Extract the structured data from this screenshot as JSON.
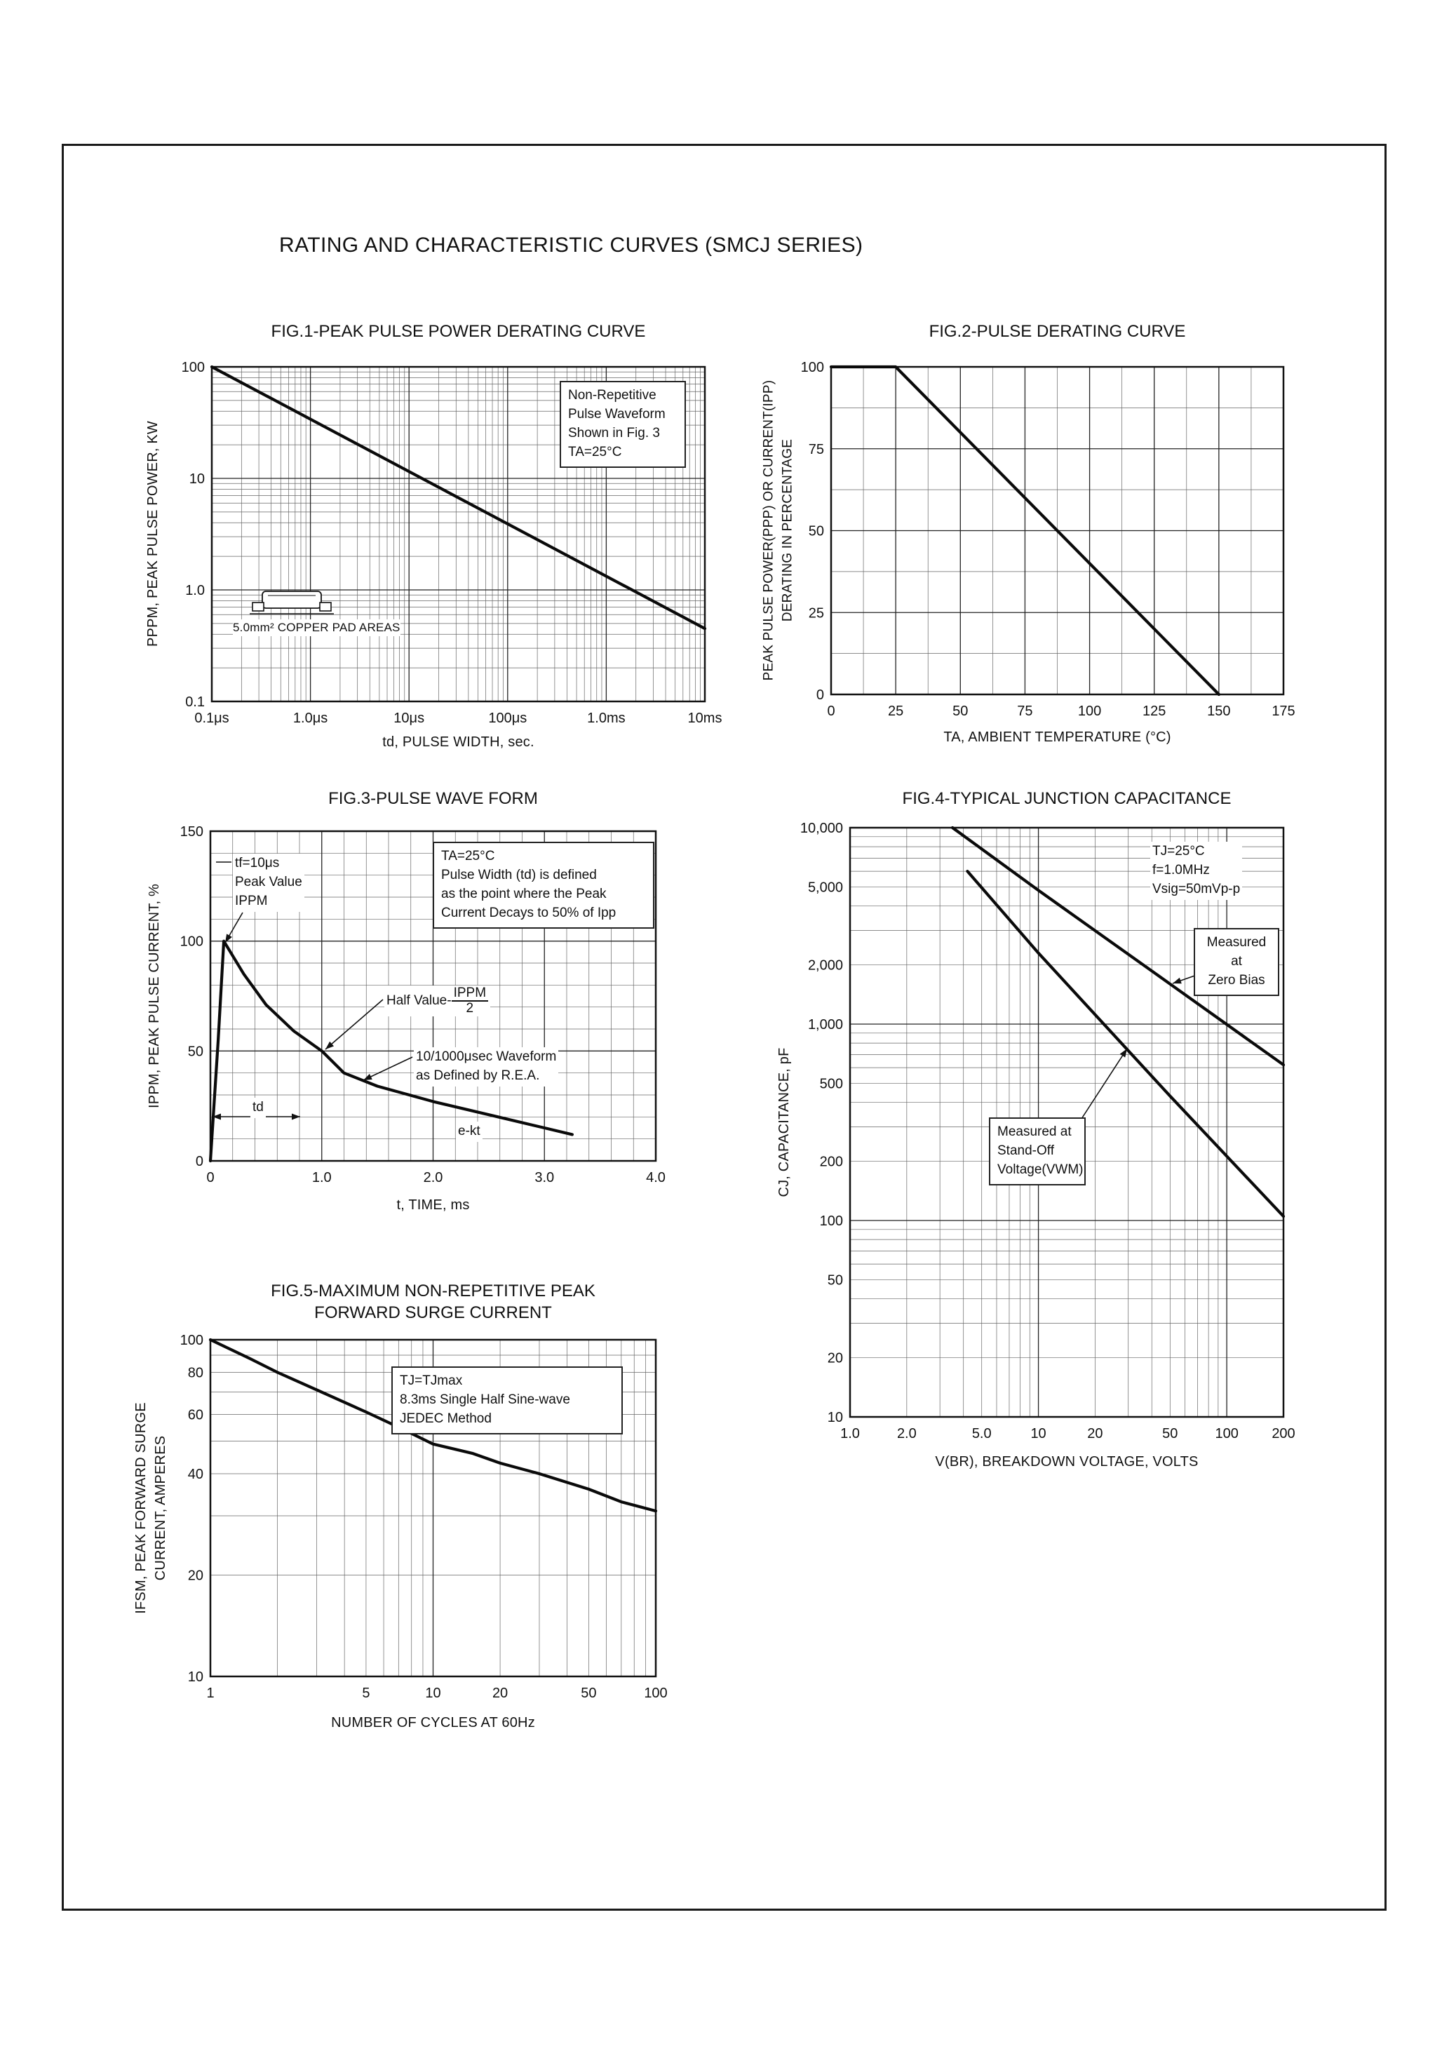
{
  "page": {
    "title": "RATING AND CHARACTERISTIC CURVES (SMCJ SERIES)"
  },
  "chart_data": [
    {
      "id": "fig1",
      "type": "line",
      "title": "FIG.1-PEAK PULSE POWER DERATING CURVE",
      "xlabel": "td, PULSE WIDTH, sec.",
      "ylabel": "PPPM, PEAK PULSE POWER, KW",
      "legend": "none",
      "grid": "on",
      "x_axis": {
        "scale": "log",
        "min": 1e-07,
        "max": 0.01,
        "ticks": [
          {
            "v": 1e-07,
            "label": "0.1μs"
          },
          {
            "v": 1e-06,
            "label": "1.0μs"
          },
          {
            "v": 1e-05,
            "label": "10μs"
          },
          {
            "v": 0.0001,
            "label": "100μs"
          },
          {
            "v": 0.001,
            "label": "1.0ms"
          },
          {
            "v": 0.01,
            "label": "10ms"
          }
        ]
      },
      "y_axis": {
        "scale": "log",
        "min": 0.1,
        "max": 100,
        "ticks": [
          {
            "v": 100,
            "label": "100"
          },
          {
            "v": 10,
            "label": "10"
          },
          {
            "v": 1,
            "label": "1.0"
          },
          {
            "v": 0.1,
            "label": "0.1"
          }
        ]
      },
      "series": [
        {
          "name": "peak-pulse-power-derating",
          "points": [
            [
              1e-07,
              100
            ],
            [
              0.01,
              0.45
            ]
          ]
        }
      ],
      "annotations": {
        "conditions": "Non-Repetitive\nPulse Waveform\nShown in Fig. 3\nTA=25°C",
        "pad_note": "5.0mm² COPPER PAD AREAS"
      }
    },
    {
      "id": "fig2",
      "type": "line",
      "title": "FIG.2-PULSE DERATING CURVE",
      "xlabel": "TA, AMBIENT TEMPERATURE (°C)",
      "ylabel": "PEAK PULSE POWER(PPP) OR CURRENT(IPP)\nDERATING IN PERCENTAGE",
      "legend": "none",
      "grid": "on",
      "x_axis": {
        "scale": "linear",
        "min": 0,
        "max": 175,
        "major": 25,
        "minor": 12.5,
        "ticks": [
          {
            "v": 0,
            "label": "0"
          },
          {
            "v": 25,
            "label": "25"
          },
          {
            "v": 50,
            "label": "50"
          },
          {
            "v": 75,
            "label": "75"
          },
          {
            "v": 100,
            "label": "100"
          },
          {
            "v": 125,
            "label": "125"
          },
          {
            "v": 150,
            "label": "150"
          },
          {
            "v": 175,
            "label": "175"
          }
        ]
      },
      "y_axis": {
        "scale": "linear",
        "min": 0,
        "max": 100,
        "major": 25,
        "minor": 12.5,
        "ticks": [
          {
            "v": 100,
            "label": "100"
          },
          {
            "v": 75,
            "label": "75"
          },
          {
            "v": 50,
            "label": "50"
          },
          {
            "v": 25,
            "label": "25"
          },
          {
            "v": 0,
            "label": "0"
          }
        ]
      },
      "series": [
        {
          "name": "pulse-derating",
          "points": [
            [
              0,
              100
            ],
            [
              25,
              100
            ],
            [
              150,
              0
            ]
          ]
        }
      ],
      "annotations": {}
    },
    {
      "id": "fig3",
      "type": "line",
      "title": "FIG.3-PULSE WAVE FORM",
      "xlabel": "t, TIME, ms",
      "ylabel": "IPPM, PEAK PULSE CURRENT, %",
      "legend": "none",
      "grid": "on",
      "x_axis": {
        "scale": "linear",
        "min": 0,
        "max": 4.0,
        "major": 1.0,
        "minor": 0.2,
        "ticks": [
          {
            "v": 0,
            "label": "0"
          },
          {
            "v": 1.0,
            "label": "1.0"
          },
          {
            "v": 2.0,
            "label": "2.0"
          },
          {
            "v": 3.0,
            "label": "3.0"
          },
          {
            "v": 4.0,
            "label": "4.0"
          }
        ]
      },
      "y_axis": {
        "scale": "linear",
        "min": 0,
        "max": 150,
        "major": 50,
        "minor": 10,
        "ticks": [
          {
            "v": 150,
            "label": "150"
          },
          {
            "v": 100,
            "label": "100"
          },
          {
            "v": 50,
            "label": "50"
          },
          {
            "v": 0,
            "label": "0"
          }
        ]
      },
      "series": [
        {
          "name": "pulse-waveform",
          "points": [
            [
              0,
              0
            ],
            [
              0.07,
              55
            ],
            [
              0.12,
              100
            ],
            [
              0.3,
              85
            ],
            [
              0.5,
              71
            ],
            [
              0.75,
              59
            ],
            [
              1.0,
              50
            ],
            [
              1.2,
              40
            ],
            [
              1.5,
              34
            ],
            [
              2.0,
              27
            ],
            [
              2.5,
              21
            ],
            [
              3.0,
              15
            ],
            [
              3.25,
              12
            ]
          ]
        }
      ],
      "annotations": {
        "rise": "tf=10μs\nPeak Value\nIPPM",
        "definition": "TA=25°C\nPulse Width (td) is defined\nas the point where the Peak\nCurrent Decays to 50% of Ipp",
        "half_value": {
          "prefix": "Half Value-",
          "num": "IPPM",
          "den": "2"
        },
        "waveform": "10/1000μsec Waveform\nas Defined by R.E.A.",
        "td_label": "td",
        "decay": "e-kt"
      }
    },
    {
      "id": "fig4",
      "type": "line",
      "title": "FIG.4-TYPICAL JUNCTION CAPACITANCE",
      "xlabel": "V(BR), BREAKDOWN VOLTAGE, VOLTS",
      "ylabel": "CJ, CAPACITANCE, pF",
      "legend": "annotated-on-plot",
      "grid": "on",
      "x_axis": {
        "scale": "log",
        "min": 1.0,
        "max": 200,
        "ticks": [
          {
            "v": 1.0,
            "label": "1.0"
          },
          {
            "v": 2.0,
            "label": "2.0"
          },
          {
            "v": 5.0,
            "label": "5.0"
          },
          {
            "v": 10,
            "label": "10"
          },
          {
            "v": 20,
            "label": "20"
          },
          {
            "v": 50,
            "label": "50"
          },
          {
            "v": 100,
            "label": "100"
          },
          {
            "v": 200,
            "label": "200"
          }
        ]
      },
      "y_axis": {
        "scale": "log",
        "min": 10,
        "max": 10000,
        "ticks": [
          {
            "v": 10000,
            "label": "10,000"
          },
          {
            "v": 5000,
            "label": "5,000"
          },
          {
            "v": 2000,
            "label": "2,000"
          },
          {
            "v": 1000,
            "label": "1,000"
          },
          {
            "v": 500,
            "label": "500"
          },
          {
            "v": 200,
            "label": "200"
          },
          {
            "v": 100,
            "label": "100"
          },
          {
            "v": 50,
            "label": "50"
          },
          {
            "v": 20,
            "label": "20"
          },
          {
            "v": 10,
            "label": "10"
          }
        ]
      },
      "series": [
        {
          "name": "measured-at-zero-bias",
          "points": [
            [
              3.5,
              10000
            ],
            [
              10,
              4800
            ],
            [
              50,
              1600
            ],
            [
              200,
              620
            ]
          ]
        },
        {
          "name": "measured-at-stand-off-voltage",
          "points": [
            [
              4.2,
              6000
            ],
            [
              10,
              2300
            ],
            [
              50,
              430
            ],
            [
              200,
              105
            ]
          ]
        }
      ],
      "annotations": {
        "conditions": "TJ=25°C\nf=1.0MHz\nVsig=50mVp-p",
        "zero_bias": "Measured at\nZero Bias",
        "standoff": "Measured at\nStand-Off\nVoltage(VWM)"
      }
    },
    {
      "id": "fig5",
      "type": "line",
      "title": "FIG.5-MAXIMUM NON-REPETITIVE PEAK\nFORWARD SURGE CURRENT",
      "xlabel": "NUMBER OF CYCLES AT 60Hz",
      "ylabel": "IFSM, PEAK FORWARD SURGE\nCURRENT, AMPERES",
      "legend": "none",
      "grid": "on",
      "x_axis": {
        "scale": "log",
        "min": 1,
        "max": 100,
        "ticks": [
          {
            "v": 1,
            "label": "1"
          },
          {
            "v": 5,
            "label": "5"
          },
          {
            "v": 10,
            "label": "10"
          },
          {
            "v": 20,
            "label": "20"
          },
          {
            "v": 50,
            "label": "50"
          },
          {
            "v": 100,
            "label": "100"
          }
        ]
      },
      "y_axis": {
        "scale": "log",
        "min": 10,
        "max": 100,
        "ticks": [
          {
            "v": 100,
            "label": "100"
          },
          {
            "v": 80,
            "label": "80"
          },
          {
            "v": 60,
            "label": "60"
          },
          {
            "v": 40,
            "label": "40"
          },
          {
            "v": 20,
            "label": "20"
          },
          {
            "v": 10,
            "label": "10"
          }
        ]
      },
      "series": [
        {
          "name": "peak-forward-surge-current",
          "points": [
            [
              1,
              100
            ],
            [
              1.5,
              88
            ],
            [
              2,
              80
            ],
            [
              3,
              71
            ],
            [
              5,
              61
            ],
            [
              7,
              55
            ],
            [
              10,
              49
            ],
            [
              15,
              46
            ],
            [
              20,
              43
            ],
            [
              30,
              40
            ],
            [
              50,
              36
            ],
            [
              70,
              33
            ],
            [
              100,
              31
            ]
          ]
        }
      ],
      "annotations": {
        "conditions": "TJ=TJmax\n8.3ms Single Half Sine-wave\nJEDEC Method"
      }
    }
  ]
}
